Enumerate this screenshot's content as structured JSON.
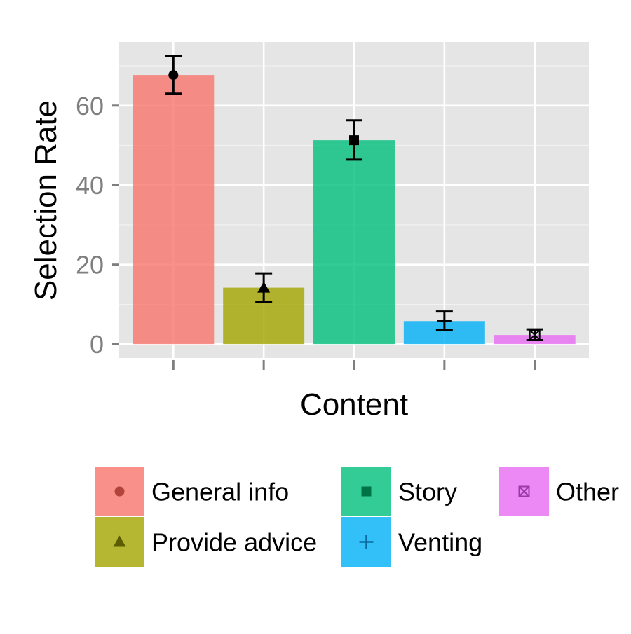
{
  "chart_data": {
    "type": "bar",
    "xlabel": "Content",
    "ylabel": "Selection Rate",
    "ylim": [
      -3.5,
      76
    ],
    "yticks": [
      0,
      20,
      40,
      60
    ],
    "grid": true,
    "legend_position": "bottom",
    "categories": [
      "General info",
      "Provide advice",
      "Story",
      "Venting",
      "Other"
    ],
    "values": [
      67.7,
      14.2,
      51.3,
      5.8,
      2.3
    ],
    "error_low": [
      63.0,
      10.6,
      46.4,
      3.5,
      1.0
    ],
    "error_high": [
      72.4,
      17.8,
      56.3,
      8.2,
      3.7
    ],
    "colors": [
      "#F8766D",
      "#A3A500",
      "#00BF7D",
      "#00B0F6",
      "#E76BF3"
    ],
    "marker_colors": [
      "#b2433c",
      "#5c5c00",
      "#007346",
      "#0a6aa0",
      "#9a3aa6"
    ],
    "shapes": [
      "circle",
      "triangle",
      "square",
      "plus",
      "boxed-x"
    ]
  }
}
